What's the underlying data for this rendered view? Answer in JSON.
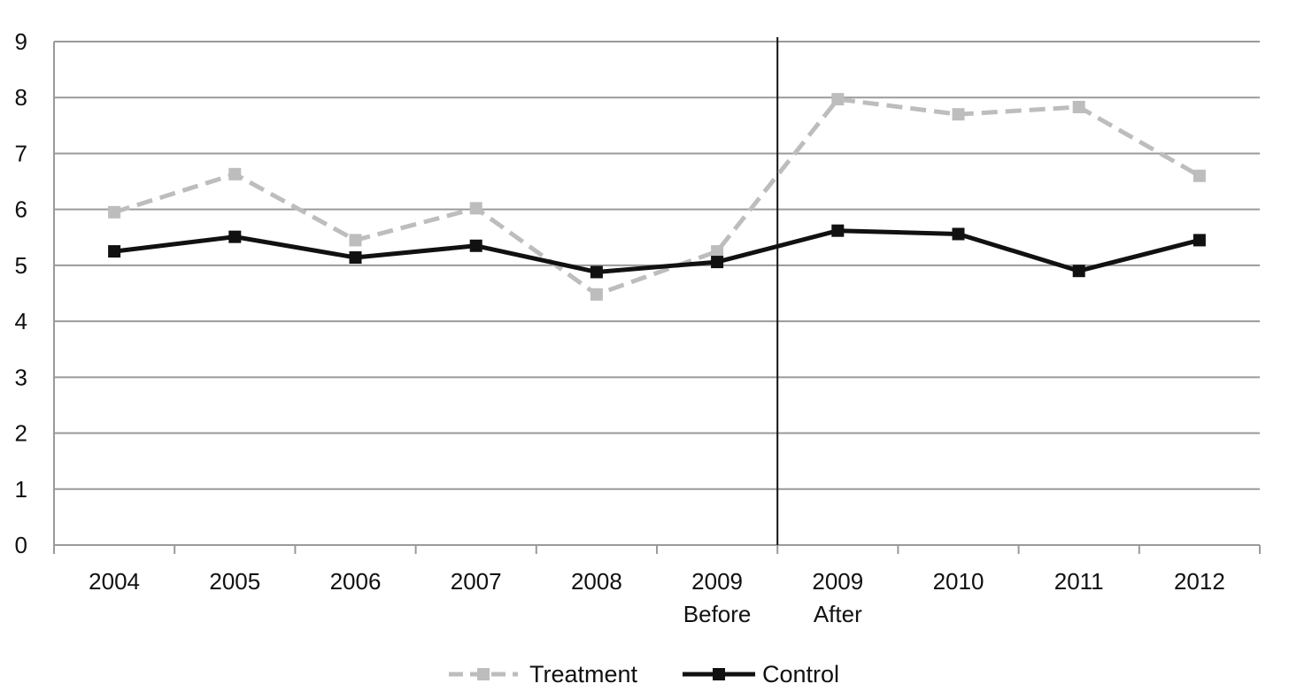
{
  "chart_data": {
    "type": "line",
    "categories": [
      [
        "2004"
      ],
      [
        "2005"
      ],
      [
        "2006"
      ],
      [
        "2007"
      ],
      [
        "2008"
      ],
      [
        "2009",
        "Before"
      ],
      [
        "2009",
        "After"
      ],
      [
        "2010"
      ],
      [
        "2011"
      ],
      [
        "2012"
      ]
    ],
    "series": [
      {
        "name": "Treatment",
        "values": [
          5.95,
          6.63,
          5.45,
          6.02,
          4.48,
          5.25,
          7.97,
          7.7,
          7.83,
          6.6
        ],
        "color": "#bdbdbd",
        "line_style": "dashed",
        "marker": "square"
      },
      {
        "name": "Control",
        "values": [
          5.25,
          5.51,
          5.14,
          5.35,
          4.88,
          5.06,
          5.62,
          5.56,
          4.9,
          5.45
        ],
        "color": "#111111",
        "line_style": "solid",
        "marker": "square"
      }
    ],
    "yticks": [
      0,
      1,
      2,
      3,
      4,
      5,
      6,
      7,
      8,
      9
    ],
    "ylim": [
      0,
      9
    ],
    "grid": "horizontal",
    "vertical_divider": "between categories 6 and 7",
    "legend_position": "bottom",
    "title": "",
    "xlabel": "",
    "ylabel": ""
  }
}
